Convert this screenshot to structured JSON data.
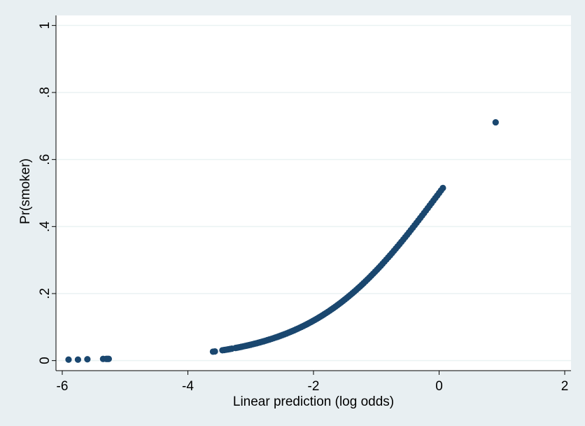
{
  "chart_data": {
    "type": "scatter",
    "xlabel": "Linear prediction (log odds)",
    "ylabel": "Pr(smoker)",
    "xlim": [
      -6.1,
      2.1
    ],
    "ylim": [
      -0.03,
      1.03
    ],
    "x_ticks": [
      -6,
      -4,
      -2,
      0,
      2
    ],
    "x_tick_labels": [
      "-6",
      "-4",
      "-2",
      "0",
      "2"
    ],
    "y_ticks": [
      0,
      0.2,
      0.4,
      0.6,
      0.8,
      1
    ],
    "y_tick_labels": [
      "0",
      ".2",
      ".4",
      ".6",
      ".8",
      "1"
    ],
    "grid": "horizontal",
    "legend": "none",
    "marker_color": "#1a476f",
    "plot_background": "#ffffff",
    "series": [
      {
        "x": [
          -5.9,
          -5.75,
          -5.6,
          -5.35,
          -5.3,
          -5.28,
          -5.26
        ],
        "y": [
          0.003,
          0.003,
          0.004,
          0.005,
          0.005,
          0.005,
          0.005
        ]
      },
      {
        "curve": "logistic",
        "x_range": [
          -3.6,
          0.08
        ],
        "step": 0.03,
        "gaps": [
          [
            -3.55,
            -3.47
          ],
          [
            -3.3,
            -3.25
          ]
        ]
      },
      {
        "x": [
          0.9
        ],
        "y": [
          0.711
        ]
      }
    ]
  }
}
